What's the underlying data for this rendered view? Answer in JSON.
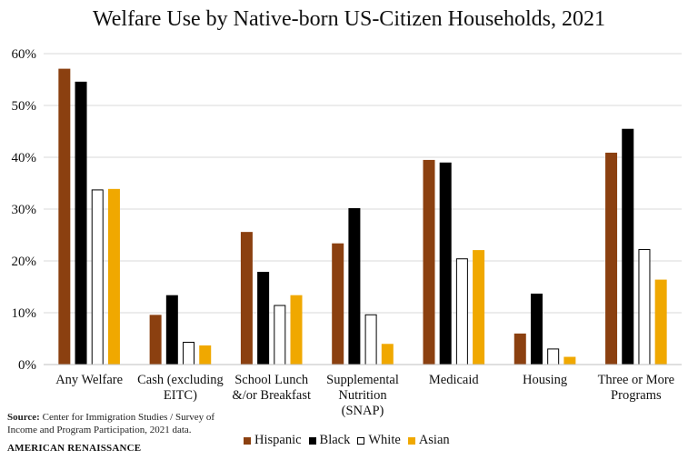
{
  "title": "Welfare Use by Native-born US-Citizen Households, 2021",
  "source_label": "Source:",
  "source_text": "Center for Immigration Studies / Survey of Income and Program Participation, 2021 data.",
  "brand": "AMERICAN RENAISSANCE",
  "chart_data": {
    "type": "bar",
    "title": "Welfare Use by Native-born US-Citizen Households, 2021",
    "xlabel": "",
    "ylabel": "",
    "ylim": [
      0,
      60
    ],
    "yticks": [
      0,
      10,
      20,
      30,
      40,
      50,
      60
    ],
    "ytick_labels": [
      "0%",
      "10%",
      "20%",
      "30%",
      "40%",
      "50%",
      "60%"
    ],
    "grid": true,
    "legend_position": "bottom-center",
    "categories": [
      [
        "Any Welfare"
      ],
      [
        "Cash (excluding",
        "EITC)"
      ],
      [
        "School Lunch",
        "&/or Breakfast"
      ],
      [
        "Supplemental",
        "Nutrition",
        "(SNAP)"
      ],
      [
        "Medicaid"
      ],
      [
        "Housing"
      ],
      [
        "Three or More",
        "Programs"
      ]
    ],
    "series": [
      {
        "name": "Hispanic",
        "color": "#8B4010",
        "stroke": "#8B4010",
        "values": [
          57.0,
          9.5,
          25.5,
          23.3,
          39.4,
          5.9,
          40.8
        ]
      },
      {
        "name": "Black",
        "color": "#000000",
        "stroke": "#000000",
        "values": [
          54.5,
          13.3,
          17.8,
          30.1,
          38.9,
          13.6,
          45.4
        ]
      },
      {
        "name": "White",
        "color": "#ffffff",
        "stroke": "#000000",
        "values": [
          33.7,
          4.3,
          11.4,
          9.6,
          20.4,
          3.0,
          22.2
        ]
      },
      {
        "name": "Asian",
        "color": "#F0A800",
        "stroke": "#F0A800",
        "values": [
          33.8,
          3.6,
          13.3,
          3.9,
          22.0,
          1.4,
          16.3
        ]
      }
    ]
  }
}
